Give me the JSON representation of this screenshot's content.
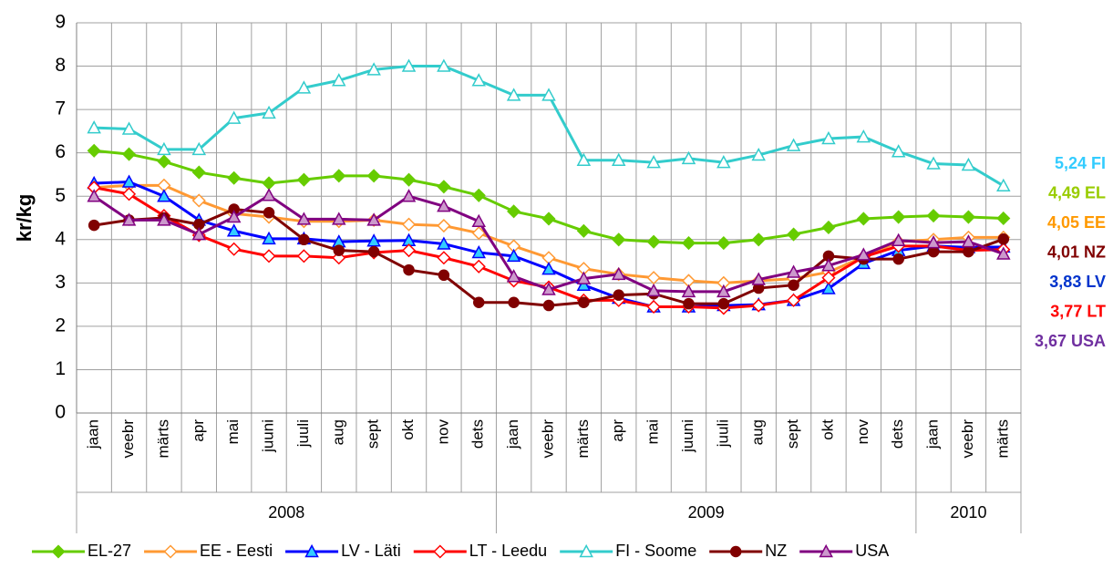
{
  "chart_data": {
    "type": "line",
    "ylabel": "kr/kg",
    "categories": [
      "jaan",
      "veebr",
      "märts",
      "apr",
      "mai",
      "juuni",
      "juuli",
      "aug",
      "sept",
      "okt",
      "nov",
      "dets",
      "jaan",
      "veebr",
      "märts",
      "apr",
      "mai",
      "juuni",
      "juuli",
      "aug",
      "sept",
      "okt",
      "nov",
      "dets",
      "jaan",
      "veebr",
      "märts"
    ],
    "x_group_labels": [
      "2008",
      null,
      null,
      null,
      null,
      null,
      null,
      null,
      null,
      null,
      null,
      null,
      "2009",
      null,
      null,
      null,
      null,
      null,
      null,
      null,
      null,
      null,
      null,
      null,
      "2010",
      null,
      null
    ],
    "ylim": [
      0,
      9
    ],
    "yticks": [
      0,
      1,
      2,
      3,
      4,
      5,
      6,
      7,
      8,
      9
    ],
    "grid": true,
    "series": [
      {
        "name": "EL-27",
        "color": "#66cc00",
        "marker": "diamond",
        "marker_fill": "#66cc00",
        "values": [
          6.05,
          5.97,
          5.8,
          5.55,
          5.42,
          5.3,
          5.38,
          5.47,
          5.47,
          5.38,
          5.22,
          5.02,
          4.65,
          4.48,
          4.2,
          4.0,
          3.95,
          3.92,
          3.92,
          4.0,
          4.12,
          4.28,
          4.48,
          4.52,
          4.55,
          4.52,
          4.49
        ]
      },
      {
        "name": "EE - Eesti",
        "color": "#ff9933",
        "marker": "diamond",
        "marker_fill": "#ffffff",
        "values": [
          5.2,
          5.25,
          5.25,
          4.9,
          4.6,
          4.52,
          4.42,
          4.42,
          4.45,
          4.35,
          4.32,
          4.15,
          3.85,
          3.58,
          3.33,
          3.2,
          3.12,
          3.05,
          3.0,
          3.05,
          3.1,
          3.25,
          3.6,
          3.95,
          4.0,
          4.05,
          4.05
        ]
      },
      {
        "name": "LV - Läti",
        "color": "#0000ff",
        "marker": "triangle",
        "marker_fill": "#33ccff",
        "values": [
          5.3,
          5.33,
          5.0,
          4.45,
          4.2,
          4.02,
          4.02,
          3.95,
          3.97,
          3.98,
          3.9,
          3.7,
          3.62,
          3.32,
          2.95,
          2.65,
          2.45,
          2.45,
          2.48,
          2.5,
          2.6,
          2.87,
          3.45,
          3.75,
          3.85,
          3.82,
          3.83
        ]
      },
      {
        "name": "LT - Leedu",
        "color": "#ff0000",
        "marker": "diamond",
        "marker_fill": "#ffffff",
        "values": [
          5.2,
          5.05,
          4.55,
          4.1,
          3.78,
          3.62,
          3.62,
          3.58,
          3.7,
          3.75,
          3.58,
          3.38,
          3.05,
          2.9,
          2.6,
          2.6,
          2.45,
          2.45,
          2.42,
          2.48,
          2.6,
          3.12,
          3.6,
          3.85,
          3.85,
          3.75,
          3.77
        ]
      },
      {
        "name": "FI - Soome",
        "color": "#33cccc",
        "marker": "triangle",
        "marker_fill": "#ffffff",
        "values": [
          6.58,
          6.55,
          6.08,
          6.08,
          6.8,
          6.92,
          7.5,
          7.67,
          7.92,
          8.0,
          8.0,
          7.67,
          7.33,
          7.33,
          5.83,
          5.83,
          5.78,
          5.87,
          5.78,
          5.95,
          6.17,
          6.33,
          6.37,
          6.03,
          5.75,
          5.72,
          5.24
        ]
      },
      {
        "name": "NZ",
        "color": "#800000",
        "marker": "circle",
        "marker_fill": "#800000",
        "values": [
          4.33,
          4.45,
          4.5,
          4.35,
          4.7,
          4.62,
          4.0,
          3.75,
          3.72,
          3.3,
          3.18,
          2.55,
          2.55,
          2.48,
          2.55,
          2.72,
          2.75,
          2.52,
          2.52,
          2.88,
          2.95,
          3.62,
          3.55,
          3.55,
          3.72,
          3.72,
          4.01
        ]
      },
      {
        "name": "USA",
        "color": "#800080",
        "marker": "triangle",
        "marker_fill": "#cc99cc",
        "values": [
          5.0,
          4.45,
          4.45,
          4.12,
          4.52,
          5.02,
          4.47,
          4.47,
          4.45,
          5.0,
          4.77,
          4.42,
          3.15,
          2.85,
          3.1,
          3.2,
          2.82,
          2.8,
          2.8,
          3.08,
          3.25,
          3.4,
          3.65,
          3.98,
          3.93,
          3.95,
          3.67
        ]
      }
    ],
    "annotations": [
      {
        "text": "5,24 FI",
        "color": "#33ccff"
      },
      {
        "text": "4,49 EL",
        "color": "#99cc00"
      },
      {
        "text": "4,05 EE",
        "color": "#ff9900"
      },
      {
        "text": "4,01 NZ",
        "color": "#800000"
      },
      {
        "text": "3,83 LV",
        "color": "#0033cc"
      },
      {
        "text": "3,77 LT",
        "color": "#ff0000"
      },
      {
        "text": "3,67 USA",
        "color": "#7030a0"
      }
    ]
  }
}
